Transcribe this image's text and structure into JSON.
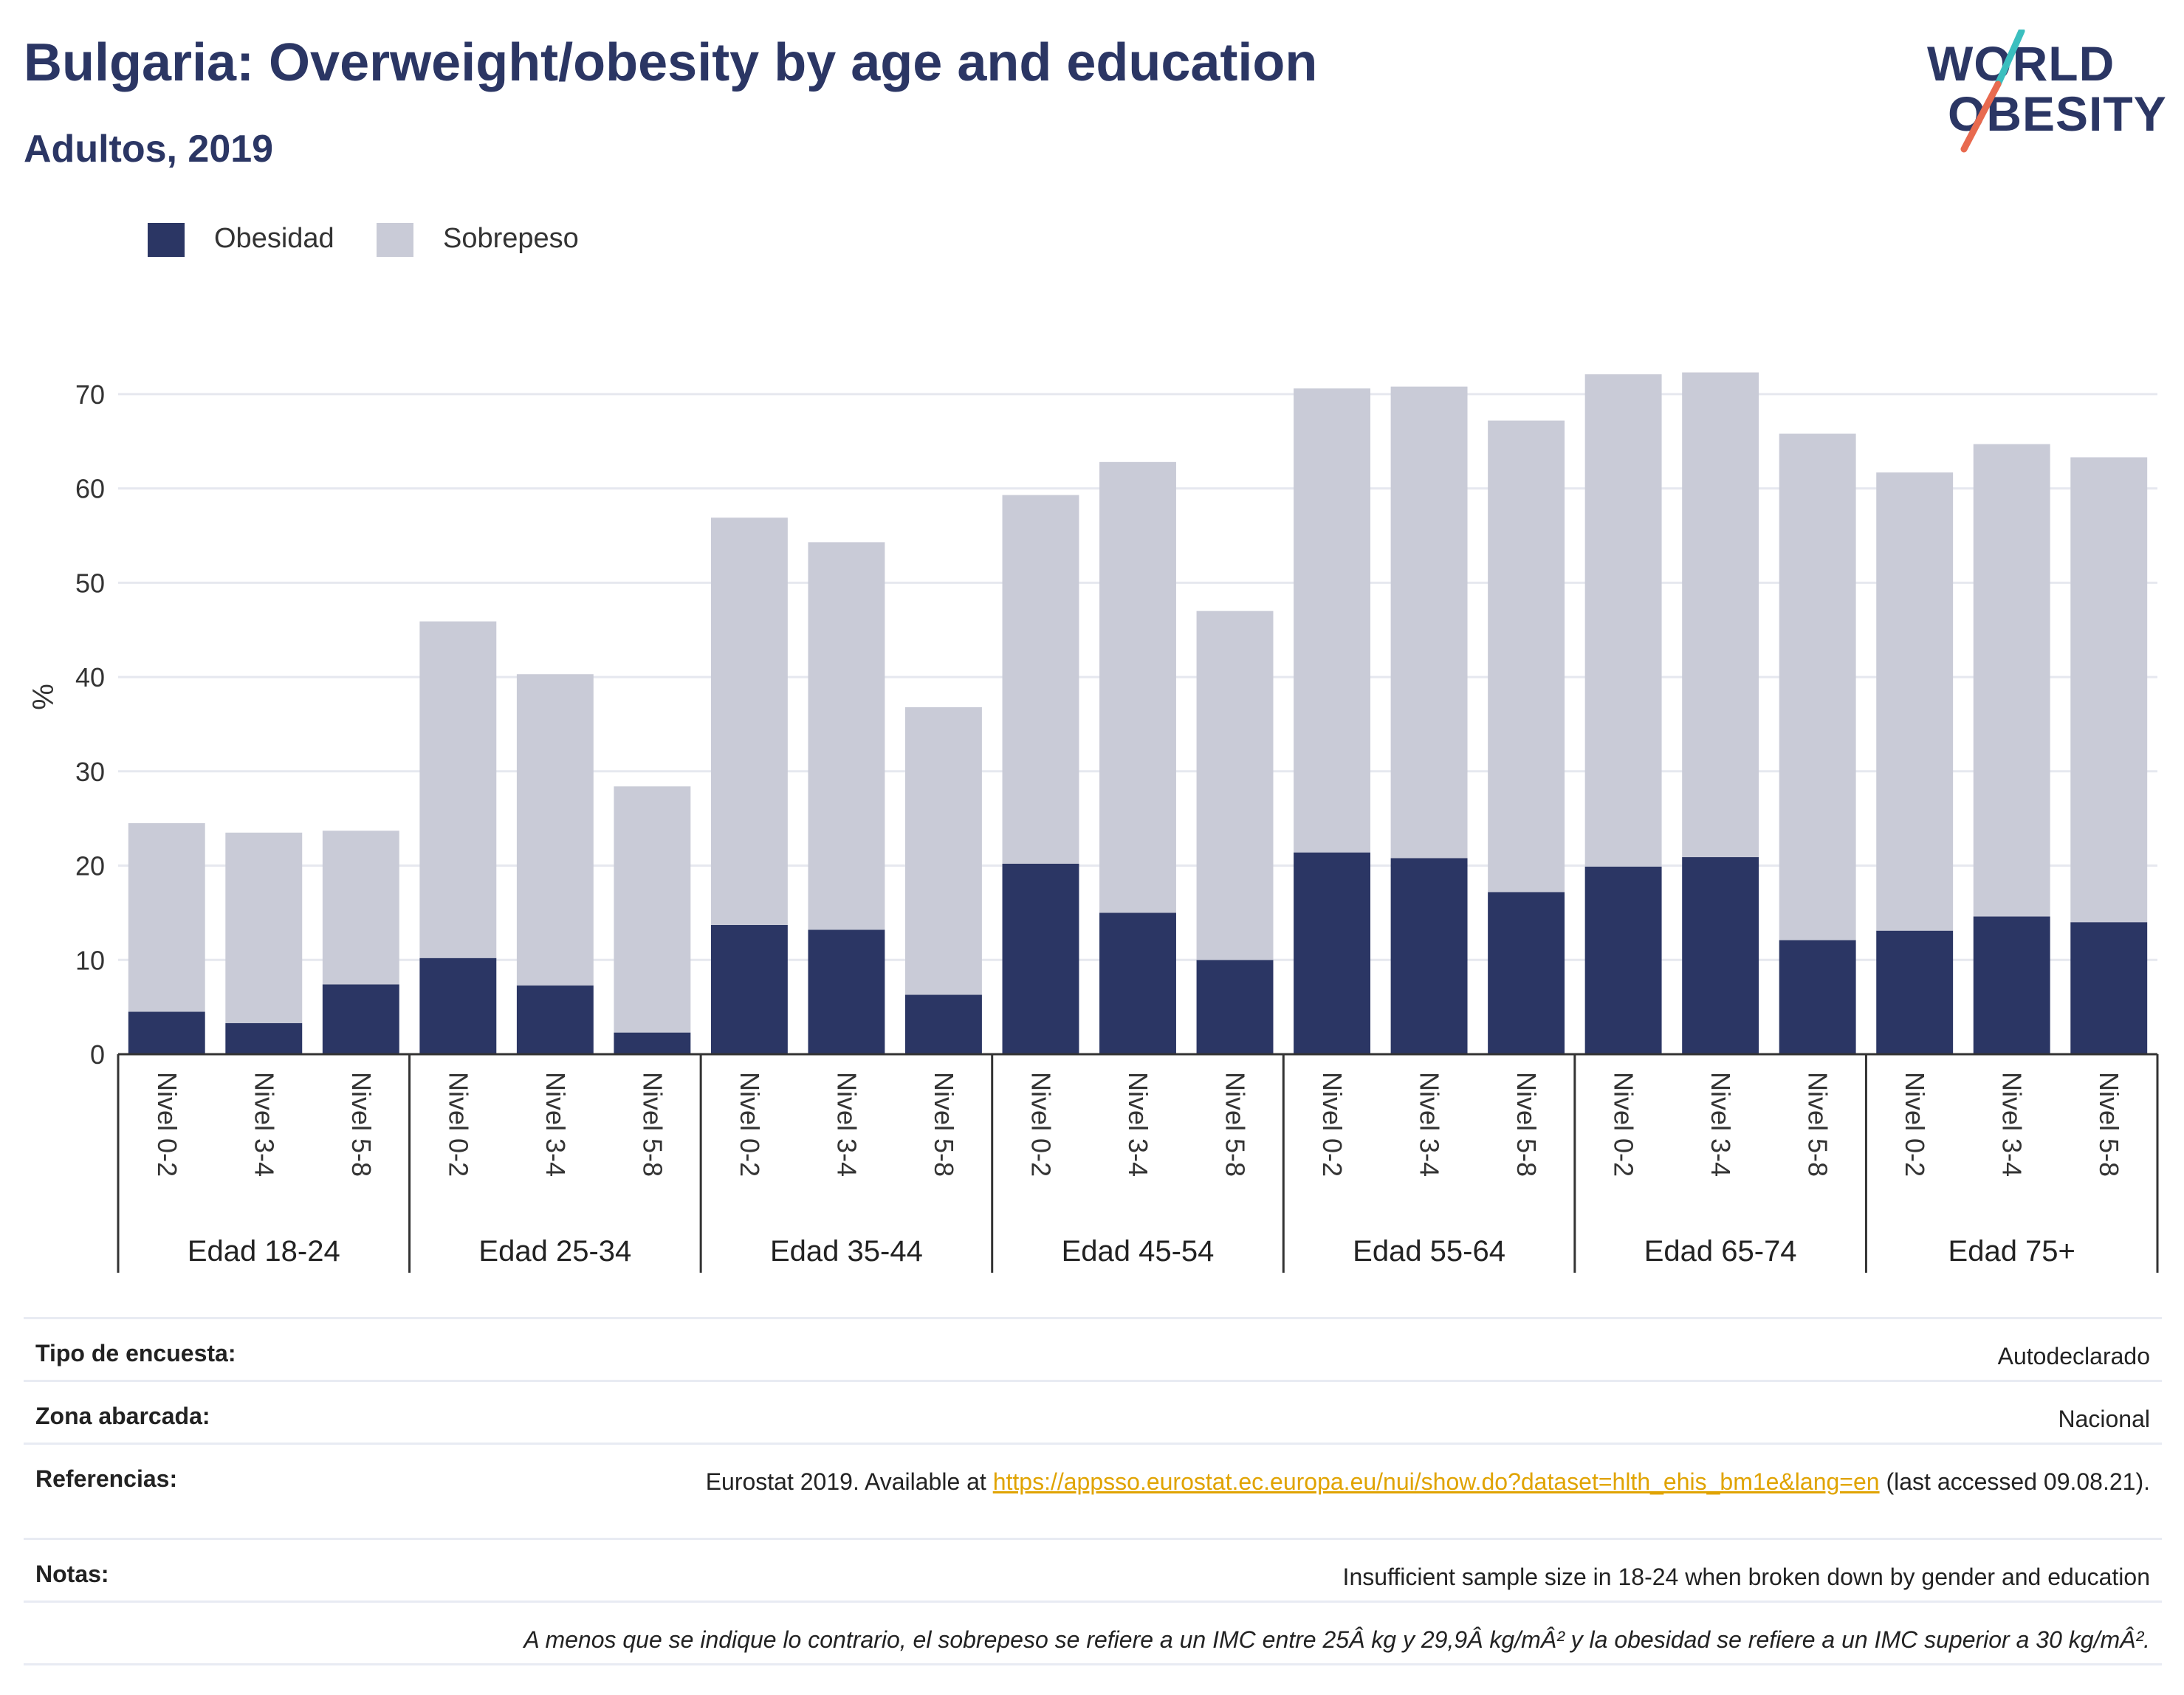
{
  "header": {
    "title": "Bulgaria: Overweight/obesity by age and education",
    "subtitle": "Adultos, 2019"
  },
  "logo": {
    "line1": "WORLD",
    "line2": "OBESITY",
    "color_text": "#2b3664",
    "color_accent_teal": "#3bbfbf",
    "color_accent_orange": "#e86a4f"
  },
  "legend": [
    {
      "label": "Obesidad",
      "color": "#2b3664"
    },
    {
      "label": "Sobrepeso",
      "color": "#c9cbd7"
    }
  ],
  "chart_data": {
    "type": "bar",
    "stacked": true,
    "title": "Bulgaria: Overweight/obesity by age and education",
    "subtitle": "Adultos, 2019",
    "ylabel": "%",
    "ylim": [
      0,
      75
    ],
    "yticks": [
      0,
      10,
      20,
      30,
      40,
      50,
      60,
      70
    ],
    "grid": true,
    "legend_position": "top-left",
    "groups": [
      {
        "label": "Edad 18-24",
        "categories": [
          "Nivel 0-2",
          "Nivel 3-4",
          "Nivel 5-8"
        ]
      },
      {
        "label": "Edad 25-34",
        "categories": [
          "Nivel 0-2",
          "Nivel 3-4",
          "Nivel 5-8"
        ]
      },
      {
        "label": "Edad 35-44",
        "categories": [
          "Nivel 0-2",
          "Nivel 3-4",
          "Nivel 5-8"
        ]
      },
      {
        "label": "Edad 45-54",
        "categories": [
          "Nivel 0-2",
          "Nivel 3-4",
          "Nivel 5-8"
        ]
      },
      {
        "label": "Edad 55-64",
        "categories": [
          "Nivel 0-2",
          "Nivel 3-4",
          "Nivel 5-8"
        ]
      },
      {
        "label": "Edad 65-74",
        "categories": [
          "Nivel 0-2",
          "Nivel 3-4",
          "Nivel 5-8"
        ]
      },
      {
        "label": "Edad 75+",
        "categories": [
          "Nivel 0-2",
          "Nivel 3-4",
          "Nivel 5-8"
        ]
      }
    ],
    "series": [
      {
        "name": "Obesidad",
        "color": "#2b3664",
        "values": [
          4.5,
          3.3,
          7.4,
          10.2,
          7.3,
          2.3,
          13.7,
          13.2,
          6.3,
          20.2,
          15.0,
          10.0,
          21.4,
          20.8,
          17.2,
          19.9,
          20.9,
          12.1,
          13.1,
          14.6,
          14.0
        ]
      },
      {
        "name": "Sobrepeso",
        "color": "#c9cbd7",
        "values": [
          20.0,
          20.2,
          16.3,
          35.7,
          33.0,
          26.1,
          43.2,
          41.1,
          30.5,
          39.1,
          47.8,
          37.0,
          49.2,
          50.0,
          50.0,
          52.2,
          51.4,
          53.7,
          48.6,
          50.1,
          49.3
        ]
      }
    ]
  },
  "info_table": {
    "rows": [
      {
        "label": "Tipo de encuesta:",
        "value": "Autodeclarado"
      },
      {
        "label": "Zona abarcada:",
        "value": "Nacional"
      },
      {
        "label": "Referencias:",
        "value_prefix": "Eurostat 2019. Available at ",
        "link": "https://appsso.eurostat.ec.europa.eu/nui/show.do?dataset=hlth_ehis_bm1e&lang=en",
        "value_suffix": " (last accessed 09.08.21)."
      },
      {
        "label": "Notas:",
        "value": "Insufficient sample size in 18-24 when broken down by gender and education"
      }
    ],
    "footnote": "A menos que se indique lo contrario, el sobrepeso se refiere a un IMC entre 25Â kg y 29,9Â kg/mÂ² y la obesidad se refiere a un IMC superior a 30 kg/mÂ²."
  }
}
